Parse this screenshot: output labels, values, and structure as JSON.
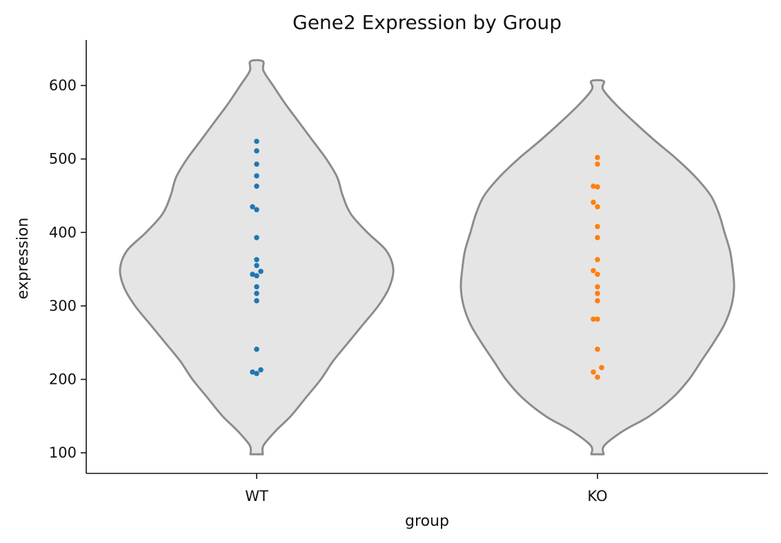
{
  "chart_data": {
    "type": "violin",
    "title": "Gene2 Expression by Group",
    "xlabel": "group",
    "ylabel": "expression",
    "ylim": [
      72,
      662
    ],
    "yticks": [
      100,
      200,
      300,
      400,
      500,
      600
    ],
    "categories": [
      "WT",
      "KO"
    ],
    "grid": false,
    "legend": "none",
    "violin_fill": "#e5e5e5",
    "violin_edge": "#8c8c8c",
    "series": [
      {
        "color": "#1f77b4",
        "range": [
          98,
          633
        ],
        "density": [
          [
            98,
            0.0
          ],
          [
            110,
            0.05
          ],
          [
            130,
            0.14
          ],
          [
            150,
            0.25
          ],
          [
            175,
            0.36
          ],
          [
            200,
            0.47
          ],
          [
            225,
            0.56
          ],
          [
            250,
            0.67
          ],
          [
            275,
            0.78
          ],
          [
            300,
            0.89
          ],
          [
            325,
            0.97
          ],
          [
            350,
            1.0
          ],
          [
            375,
            0.95
          ],
          [
            400,
            0.81
          ],
          [
            425,
            0.69
          ],
          [
            450,
            0.63
          ],
          [
            475,
            0.59
          ],
          [
            500,
            0.51
          ],
          [
            525,
            0.41
          ],
          [
            550,
            0.31
          ],
          [
            575,
            0.21
          ],
          [
            600,
            0.12
          ],
          [
            620,
            0.05
          ],
          [
            633,
            0.0
          ]
        ],
        "points": [
          [
            0,
            524
          ],
          [
            0,
            511
          ],
          [
            0,
            493
          ],
          [
            0,
            477
          ],
          [
            0,
            463
          ],
          [
            -1,
            435
          ],
          [
            0,
            431
          ],
          [
            0,
            393
          ],
          [
            0,
            363
          ],
          [
            0,
            355
          ],
          [
            1,
            347
          ],
          [
            -1,
            343
          ],
          [
            0,
            341
          ],
          [
            0,
            326
          ],
          [
            0,
            317
          ],
          [
            0,
            307
          ],
          [
            0,
            241
          ],
          [
            1,
            213
          ],
          [
            -1,
            210
          ],
          [
            0,
            208
          ]
        ]
      },
      {
        "color": "#ff7f0e",
        "range": [
          98,
          606
        ],
        "density": [
          [
            98,
            0.0
          ],
          [
            110,
            0.05
          ],
          [
            130,
            0.19
          ],
          [
            150,
            0.38
          ],
          [
            175,
            0.55
          ],
          [
            200,
            0.67
          ],
          [
            225,
            0.76
          ],
          [
            250,
            0.85
          ],
          [
            275,
            0.93
          ],
          [
            300,
            0.98
          ],
          [
            325,
            1.0
          ],
          [
            350,
            0.99
          ],
          [
            375,
            0.97
          ],
          [
            400,
            0.93
          ],
          [
            425,
            0.89
          ],
          [
            450,
            0.83
          ],
          [
            475,
            0.72
          ],
          [
            500,
            0.58
          ],
          [
            525,
            0.42
          ],
          [
            550,
            0.27
          ],
          [
            575,
            0.13
          ],
          [
            595,
            0.04
          ],
          [
            606,
            0.0
          ]
        ],
        "points": [
          [
            0,
            502
          ],
          [
            0,
            493
          ],
          [
            -1,
            463
          ],
          [
            0,
            462
          ],
          [
            -1,
            441
          ],
          [
            0,
            435
          ],
          [
            0,
            408
          ],
          [
            0,
            393
          ],
          [
            0,
            363
          ],
          [
            -1,
            348
          ],
          [
            0,
            343
          ],
          [
            0,
            326
          ],
          [
            0,
            317
          ],
          [
            0,
            307
          ],
          [
            -1,
            282
          ],
          [
            0,
            282
          ],
          [
            0,
            241
          ],
          [
            1,
            216
          ],
          [
            -1,
            210
          ],
          [
            0,
            203
          ]
        ]
      }
    ]
  }
}
